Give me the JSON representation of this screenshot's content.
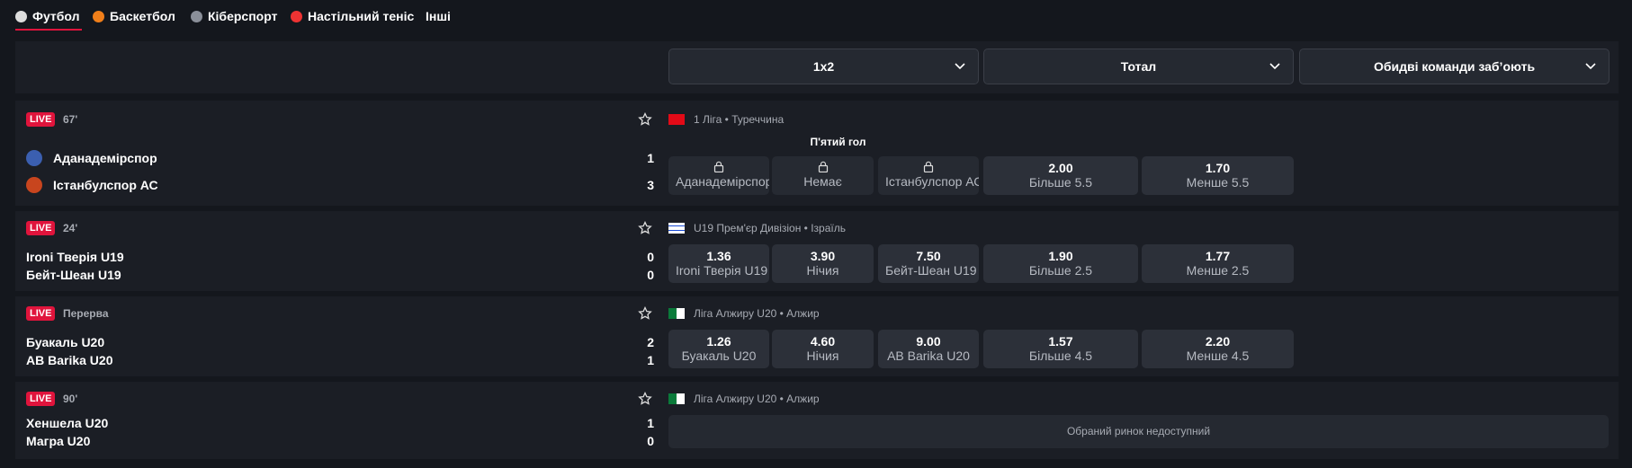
{
  "tabs": [
    "Футбол",
    "Баскетбол",
    "Кіберспорт",
    "Настільний теніс",
    "Інші"
  ],
  "markets": [
    "1x2",
    "Тотал",
    "Обидві команди заб’оють"
  ],
  "matches": [
    {
      "status": "LIVE",
      "time": "67'",
      "league": "1 Ліга • Туреччина",
      "flag": "tr",
      "team_logos": true,
      "market_title": "П'ятий гол",
      "teams": [
        {
          "name": "Аданадемірспор",
          "score": 1
        },
        {
          "name": "Істанбулспор АС",
          "score": 3
        }
      ],
      "odds": [
        {
          "label": "Аданадемірспор"
        },
        {
          "label": "Немає"
        },
        {
          "label": "Істанбулспор АС"
        },
        {
          "value": "2.00",
          "label": "Більше 5.5"
        },
        {
          "value": "1.70",
          "label": "Менше 5.5"
        }
      ]
    },
    {
      "status": "LIVE",
      "time": "24'",
      "league": "U19 Прем'єр Дивізіон • Ізраїль",
      "flag": "il",
      "teams": [
        {
          "name": "Ironi Тверія U19",
          "score": 0
        },
        {
          "name": "Бейт-Шеан U19",
          "score": 0
        }
      ],
      "odds": [
        {
          "value": "1.36",
          "label": "Ironi Тверія U19"
        },
        {
          "value": "3.90",
          "label": "Нічия"
        },
        {
          "value": "7.50",
          "label": "Бейт-Шеан U19"
        },
        {
          "value": "1.90",
          "label": "Більше 2.5"
        },
        {
          "value": "1.77",
          "label": "Менше 2.5"
        }
      ]
    },
    {
      "status": "LIVE",
      "time": "Перерва",
      "league": "Ліга Алжиру U20 • Алжир",
      "flag": "dz",
      "teams": [
        {
          "name": "Буакаль U20",
          "score": 2
        },
        {
          "name": "AB Barika U20",
          "score": 1
        }
      ],
      "odds": [
        {
          "value": "1.26",
          "label": "Буакаль U20"
        },
        {
          "value": "4.60",
          "label": "Нічия"
        },
        {
          "value": "9.00",
          "label": "AB Barika U20"
        },
        {
          "value": "1.57",
          "label": "Більше 4.5"
        },
        {
          "value": "2.20",
          "label": "Менше 4.5"
        }
      ]
    },
    {
      "status": "LIVE",
      "time": "90'",
      "league": "Ліга Алжиру U20 • Алжир",
      "flag": "dz",
      "teams": [
        {
          "name": "Хеншела U20",
          "score": 1
        },
        {
          "name": "Магра U20",
          "score": 0
        }
      ],
      "unavailable": "Обраний ринок недоступний"
    }
  ]
}
